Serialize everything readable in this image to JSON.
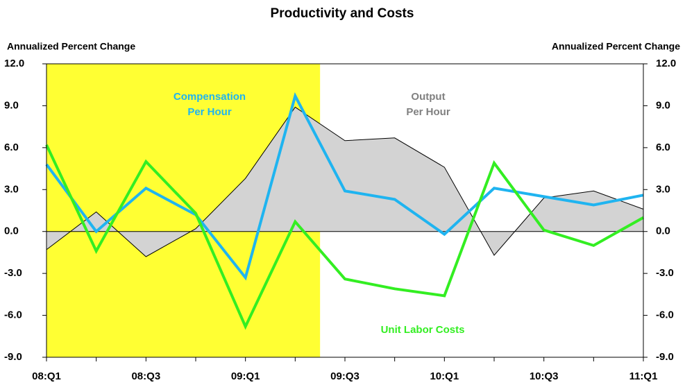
{
  "chart_data": {
    "type": "line",
    "title": "Productivity and Costs",
    "y_label": "Annualized Percent Change",
    "y2_label": "Annualized Percent Change",
    "categories": [
      "08:Q1",
      null,
      "08:Q3",
      null,
      "09:Q1",
      null,
      "09:Q3",
      null,
      "10:Q1",
      null,
      "10:Q3",
      null,
      "11:Q1"
    ],
    "shade_x": [
      0,
      5.5
    ],
    "shade_color": "#ffff33",
    "series": [
      {
        "kind": "area",
        "color": "#d3d3d3",
        "line_color": "#000000",
        "values": [
          -1.3,
          1.4,
          -1.8,
          0.2,
          3.8,
          8.9,
          6.5,
          6.7,
          4.6,
          -1.7,
          2.4,
          2.9,
          1.6
        ]
      },
      {
        "kind": "line",
        "color": "#1fb4f0",
        "values": [
          4.8,
          0.0,
          3.1,
          1.2,
          -3.3,
          9.7,
          2.9,
          2.3,
          -0.2,
          3.1,
          2.5,
          1.9,
          2.6
        ]
      },
      {
        "kind": "line",
        "color": "#33ee22",
        "values": [
          6.2,
          -1.4,
          5.0,
          1.3,
          -6.8,
          0.7,
          -3.4,
          -4.1,
          -4.6,
          4.9,
          0.1,
          -1.0,
          1.0
        ]
      }
    ],
    "annotations": [
      {
        "lines": [
          "Output",
          "Per Hour"
        ],
        "color": "#808080"
      },
      {
        "lines": [
          "Compensation",
          "Per Hour"
        ],
        "color": "#1fb4f0"
      },
      {
        "lines": [
          "Unit Labor Costs"
        ],
        "color": "#33ee22"
      }
    ],
    "ylim": [
      -9,
      12
    ],
    "yticks": [
      {
        "value": -9,
        "label": "-9.0"
      },
      {
        "value": -6,
        "label": "-6.0"
      },
      {
        "value": -3,
        "label": "-3.0"
      },
      {
        "value": 0,
        "label": "0.0"
      },
      {
        "value": 3,
        "label": "3.0"
      },
      {
        "value": 6,
        "label": "6.0"
      },
      {
        "value": 9,
        "label": "9.0"
      },
      {
        "value": 12,
        "label": "12.0"
      }
    ],
    "y2lim": [
      -9,
      12
    ],
    "y2ticks": [
      {
        "value": -9,
        "label": "-9.0"
      },
      {
        "value": -6,
        "label": "-6.0"
      },
      {
        "value": -3,
        "label": "-3.0"
      },
      {
        "value": 0,
        "label": "0.0"
      },
      {
        "value": 3,
        "label": "3.0"
      },
      {
        "value": 6,
        "label": "6.0"
      },
      {
        "value": 9,
        "label": "9.0"
      },
      {
        "value": 12,
        "label": "12.0"
      }
    ]
  }
}
